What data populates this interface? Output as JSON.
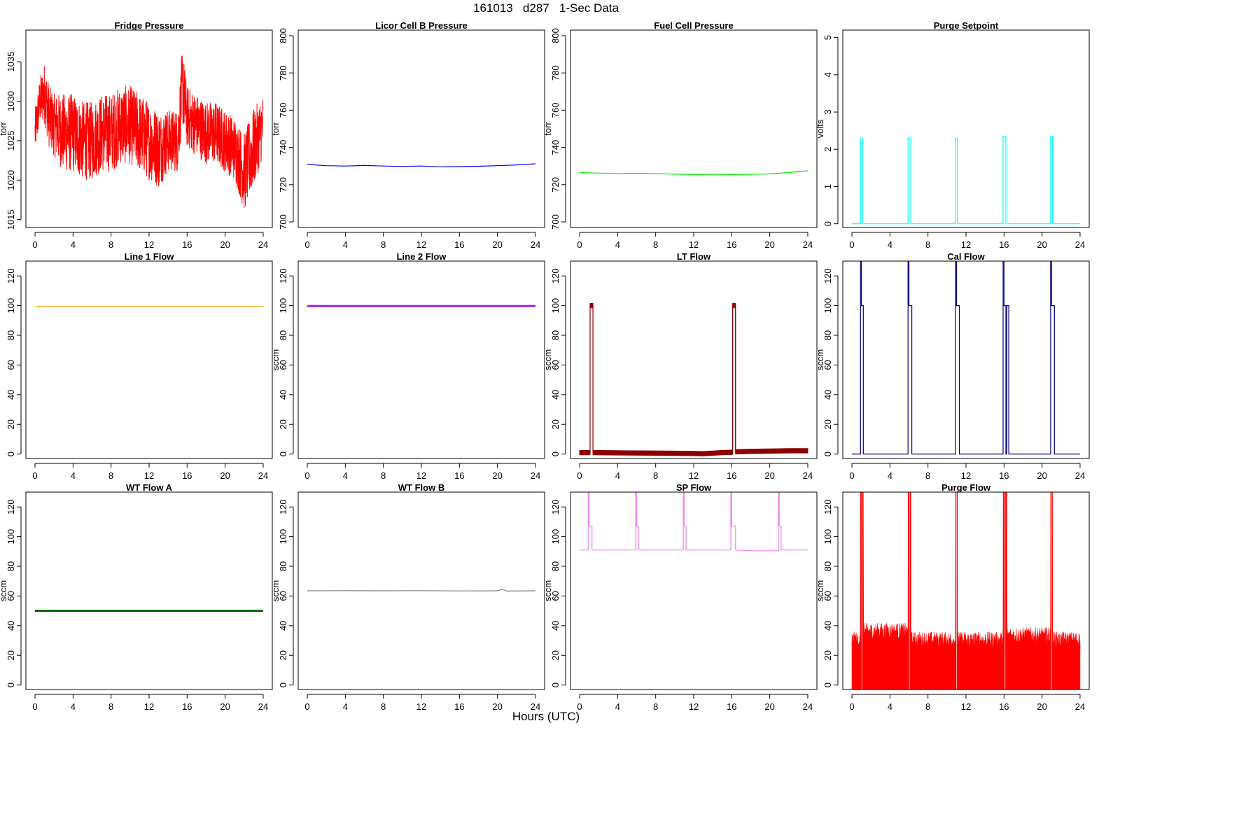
{
  "figure": {
    "title": "161013   d287   1-Sec Data",
    "xlabel": "Hours (UTC)"
  },
  "chart_data": [
    {
      "type": "line",
      "title": "Fridge Pressure",
      "ylabel": "torr",
      "color": "#ff0000",
      "xlim": [
        0,
        24
      ],
      "ylim": [
        1014,
        1039
      ],
      "xticks": [
        0,
        4,
        8,
        12,
        16,
        20,
        24
      ],
      "yticks": [
        1015,
        1020,
        1025,
        1030,
        1035
      ],
      "noisy": true,
      "series": [
        {
          "x": [
            0,
            0.5,
            1,
            1.5,
            2,
            3,
            4,
            5,
            6,
            7,
            8,
            9,
            10,
            11,
            12,
            13,
            14,
            15,
            15.5,
            16,
            17,
            18,
            19,
            20,
            21,
            22,
            23,
            24
          ],
          "y": [
            1026,
            1030,
            1031,
            1028,
            1027,
            1026,
            1026,
            1025,
            1025,
            1026,
            1026,
            1027,
            1027,
            1026,
            1025,
            1024,
            1025,
            1025,
            1032,
            1028,
            1027,
            1026,
            1026,
            1025,
            1024,
            1021,
            1024,
            1027
          ],
          "spread": [
            3,
            3,
            4,
            4,
            4,
            5,
            5,
            5,
            5,
            5,
            5,
            5,
            5,
            5,
            5,
            5,
            4,
            4,
            5,
            4,
            4,
            4,
            4,
            4,
            4,
            5,
            5,
            4
          ]
        }
      ]
    },
    {
      "type": "line",
      "title": "Licor Cell B Pressure",
      "ylabel": "torr",
      "color": "#0000ff",
      "xlim": [
        0,
        24
      ],
      "ylim": [
        697,
        803
      ],
      "xticks": [
        0,
        4,
        8,
        12,
        16,
        20,
        24
      ],
      "yticks": [
        700,
        720,
        740,
        760,
        780,
        800
      ],
      "series": [
        {
          "x": [
            0,
            1,
            2,
            4,
            6,
            8,
            10,
            12,
            14,
            16,
            18,
            20,
            22,
            24
          ],
          "y": [
            731,
            730.5,
            730.2,
            730,
            730.3,
            730,
            729.8,
            730,
            729.6,
            729.7,
            729.9,
            730.2,
            730.6,
            731.2
          ]
        }
      ]
    },
    {
      "type": "line",
      "title": "Fuel Cell Pressure",
      "ylabel": "torr",
      "color": "#00ee00",
      "xlim": [
        0,
        24
      ],
      "ylim": [
        697,
        803
      ],
      "xticks": [
        0,
        4,
        8,
        12,
        16,
        20,
        24
      ],
      "yticks": [
        700,
        720,
        740,
        760,
        780,
        800
      ],
      "series": [
        {
          "x": [
            0,
            2,
            4,
            6,
            8,
            10,
            12,
            14,
            16,
            18,
            20,
            22,
            24
          ],
          "y": [
            726.5,
            726.2,
            726,
            726.1,
            726,
            725.6,
            725.4,
            725.5,
            725.4,
            725.5,
            725.8,
            726.5,
            727.5
          ]
        }
      ]
    },
    {
      "type": "line",
      "title": "Purge Setpoint",
      "ylabel": "volts",
      "color": "#00ffff",
      "xlim": [
        0,
        24
      ],
      "ylim": [
        -0.1,
        5.2
      ],
      "xticks": [
        0,
        4,
        8,
        12,
        16,
        20,
        24
      ],
      "yticks": [
        0,
        1,
        2,
        3,
        4,
        5
      ],
      "series": [
        {
          "x": [
            0,
            0.9,
            0.9,
            1.1,
            1.1,
            5.9,
            5.9,
            6.2,
            6.2,
            10.9,
            10.9,
            11.1,
            11.1,
            15.9,
            15.9,
            16.2,
            16.2,
            20.9,
            20.9,
            21.1,
            21.1,
            24
          ],
          "y": [
            0,
            0,
            2.3,
            2.3,
            0,
            0,
            2.3,
            2.3,
            0,
            0,
            2.3,
            2.3,
            0,
            0,
            2.35,
            2.35,
            0,
            0,
            2.35,
            2.35,
            0,
            0
          ]
        }
      ]
    },
    {
      "type": "line",
      "title": "Line 1 Flow",
      "ylabel": "",
      "color": "#ffa500",
      "xlim": [
        0,
        24
      ],
      "ylim": [
        -3,
        130
      ],
      "xticks": [
        0,
        4,
        8,
        12,
        16,
        20,
        24
      ],
      "yticks": [
        0,
        20,
        40,
        60,
        80,
        100,
        120
      ],
      "series": [
        {
          "x": [
            0,
            24
          ],
          "y": [
            99.5,
            99.5
          ]
        }
      ]
    },
    {
      "type": "line",
      "title": "Line 2 Flow",
      "ylabel": "sccm",
      "color": "#a020f0",
      "xlim": [
        0,
        24
      ],
      "ylim": [
        -3,
        130
      ],
      "xticks": [
        0,
        4,
        8,
        12,
        16,
        20,
        24
      ],
      "yticks": [
        0,
        20,
        40,
        60,
        80,
        100,
        120
      ],
      "thick": true,
      "series": [
        {
          "x": [
            0,
            24
          ],
          "y": [
            99.7,
            99.7
          ]
        }
      ]
    },
    {
      "type": "line",
      "title": "LT Flow",
      "ylabel": "sccm",
      "color": "#8b0000",
      "xlim": [
        0,
        24
      ],
      "ylim": [
        -3,
        130
      ],
      "xticks": [
        0,
        4,
        8,
        12,
        16,
        20,
        24
      ],
      "yticks": [
        0,
        20,
        40,
        60,
        80,
        100,
        120
      ],
      "band": true,
      "series": [
        {
          "x": [
            0,
            1.1,
            1.1,
            1.4,
            1.4,
            4,
            8,
            12,
            13,
            15,
            16.1,
            16.1,
            16.4,
            16.4,
            18,
            20,
            22,
            24
          ],
          "y": [
            1,
            1,
            100,
            100,
            1,
            0.8,
            0.6,
            0.4,
            0.2,
            1,
            1.2,
            100,
            100,
            1.5,
            1.8,
            2,
            2.2,
            2.2
          ],
          "spread": [
            3,
            3,
            3,
            3,
            3,
            3,
            3,
            3,
            3,
            3,
            3,
            3,
            3,
            3,
            3,
            3,
            3,
            3
          ]
        }
      ]
    },
    {
      "type": "line",
      "title": "Cal Flow",
      "ylabel": "sccm",
      "color": "#000080",
      "xlim": [
        0,
        24
      ],
      "ylim": [
        -3,
        130
      ],
      "xticks": [
        0,
        4,
        8,
        12,
        16,
        20,
        24
      ],
      "yticks": [
        0,
        20,
        40,
        60,
        80,
        100,
        120
      ],
      "series": [
        {
          "x": [
            0,
            0.9,
            0.9,
            1,
            1,
            1.2,
            1.2,
            5.9,
            5.9,
            6,
            6,
            6.3,
            6.3,
            10.9,
            10.9,
            11,
            11,
            11.3,
            11.3,
            15.9,
            15.9,
            16,
            16,
            16.2,
            16.2,
            16.3,
            16.3,
            16.5,
            16.5,
            20.9,
            20.9,
            21,
            21,
            21.3,
            21.3,
            24
          ],
          "y": [
            0,
            0,
            130,
            130,
            100,
            100,
            0,
            0,
            130,
            130,
            100,
            100,
            0,
            0,
            130,
            130,
            100,
            100,
            0,
            0,
            130,
            130,
            100,
            100,
            0,
            0,
            100,
            100,
            0,
            0,
            130,
            130,
            100,
            100,
            0,
            0
          ]
        }
      ]
    },
    {
      "type": "line",
      "title": "WT Flow A",
      "ylabel": "sccm",
      "color": "#006400",
      "xlim": [
        0,
        24
      ],
      "ylim": [
        -3,
        130
      ],
      "xticks": [
        0,
        4,
        8,
        12,
        16,
        20,
        24
      ],
      "yticks": [
        0,
        20,
        40,
        60,
        80,
        100,
        120
      ],
      "thick": true,
      "series": [
        {
          "x": [
            0,
            24
          ],
          "y": [
            50,
            50
          ]
        }
      ]
    },
    {
      "type": "line",
      "title": "WT Flow B",
      "ylabel": "sccm",
      "color": "#808080",
      "xlim": [
        0,
        24
      ],
      "ylim": [
        -3,
        130
      ],
      "xticks": [
        0,
        4,
        8,
        12,
        16,
        20,
        24
      ],
      "yticks": [
        0,
        20,
        40,
        60,
        80,
        100,
        120
      ],
      "series": [
        {
          "x": [
            0,
            4,
            8,
            12,
            16,
            20,
            20.5,
            21,
            24
          ],
          "y": [
            63.5,
            63.6,
            63.5,
            63.6,
            63.4,
            63.5,
            64.5,
            63.3,
            63.5
          ]
        }
      ]
    },
    {
      "type": "line",
      "title": "SP Flow",
      "ylabel": "sccm",
      "color": "#ee82ee",
      "xlim": [
        0,
        24
      ],
      "ylim": [
        -3,
        130
      ],
      "xticks": [
        0,
        4,
        8,
        12,
        16,
        20,
        24
      ],
      "yticks": [
        0,
        20,
        40,
        60,
        80,
        100,
        120
      ],
      "series": [
        {
          "x": [
            0,
            0.9,
            0.9,
            1,
            1,
            1.3,
            1.3,
            5.9,
            5.9,
            6,
            6,
            6.2,
            6.2,
            10.9,
            10.9,
            11,
            11,
            11.2,
            11.2,
            15.9,
            15.9,
            16,
            16,
            16.4,
            16.4,
            18,
            20.9,
            20.9,
            21,
            21,
            21.2,
            21.2,
            24
          ],
          "y": [
            91,
            91,
            130,
            130,
            107,
            107,
            91,
            91,
            130,
            130,
            107,
            107,
            91,
            91,
            130,
            130,
            107,
            107,
            91,
            91,
            130,
            130,
            107,
            107,
            91,
            90.5,
            90.5,
            130,
            130,
            107,
            107,
            91,
            91
          ]
        }
      ]
    },
    {
      "type": "line",
      "title": "Purge Flow",
      "ylabel": "sccm",
      "color": "#ff0000",
      "xlim": [
        0,
        24
      ],
      "ylim": [
        -3,
        130
      ],
      "xticks": [
        0,
        4,
        8,
        12,
        16,
        20,
        24
      ],
      "yticks": [
        0,
        20,
        40,
        60,
        80,
        100,
        120
      ],
      "fill_noise": true,
      "series": [
        {
          "x": [
            0,
            0.9,
            0.9,
            1.2,
            1.2,
            5.9,
            5.9,
            6.2,
            6.2,
            10.9,
            10.9,
            11.1,
            11.1,
            15.9,
            15.9,
            16.3,
            16.3,
            20.9,
            20.9,
            21.1,
            21.1,
            24
          ],
          "y": [
            32,
            32,
            130,
            130,
            38,
            32,
            130,
            130,
            32,
            32,
            130,
            130,
            32,
            32,
            130,
            130,
            35,
            32,
            130,
            130,
            32,
            32
          ]
        }
      ]
    }
  ]
}
